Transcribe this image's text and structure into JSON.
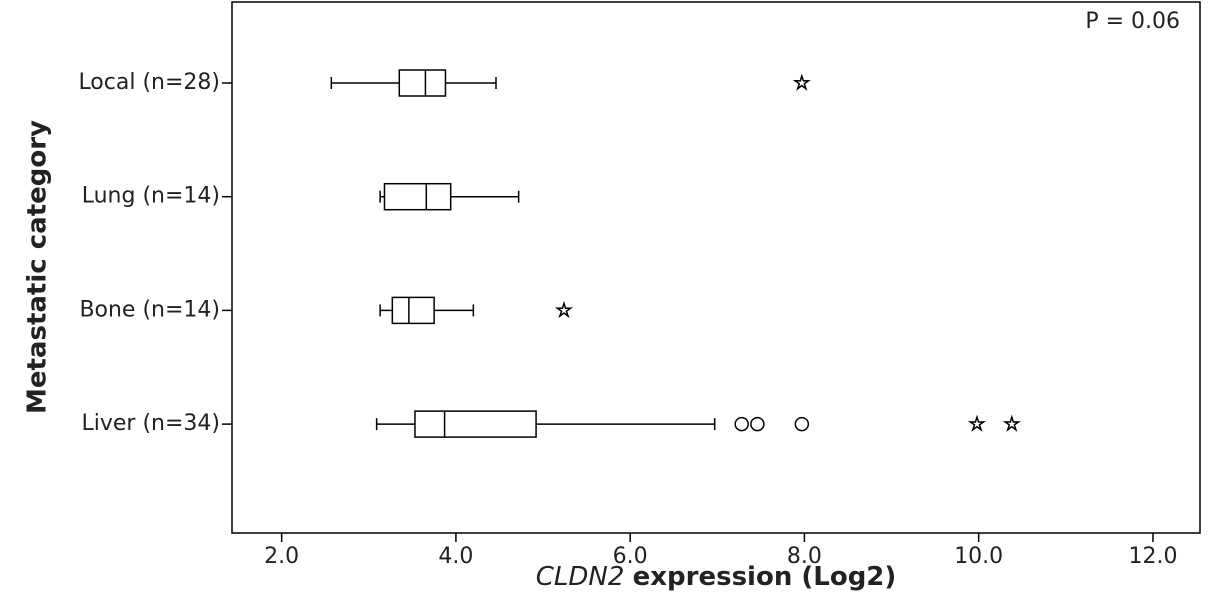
{
  "chart_data": {
    "type": "box",
    "orientation": "horizontal",
    "annotation": "P = 0.06",
    "ylabel": "Metastatic category",
    "xlabel": [
      "CLDN2",
      "expression (Log2)"
    ],
    "categories": [
      "Local (n=28)",
      "Lung (n=14)",
      "Bone (n=14)",
      "Liver (n=34)"
    ],
    "boxes": [
      {
        "min": 2.57,
        "q1": 3.35,
        "median": 3.65,
        "q3": 3.88,
        "max": 4.46,
        "outliers": [],
        "extremes": [
          7.97
        ]
      },
      {
        "min": 3.13,
        "q1": 3.18,
        "median": 3.66,
        "q3": 3.94,
        "max": 4.72,
        "outliers": [],
        "extremes": []
      },
      {
        "min": 3.13,
        "q1": 3.27,
        "median": 3.46,
        "q3": 3.75,
        "max": 4.2,
        "outliers": [],
        "extremes": [
          5.24
        ]
      },
      {
        "min": 3.09,
        "q1": 3.53,
        "median": 3.87,
        "q3": 4.92,
        "max": 6.97,
        "outliers": [
          7.28,
          7.46,
          7.97
        ],
        "extremes": [
          9.98,
          10.38
        ]
      }
    ],
    "color": "#000000",
    "xlim": [
      1.43,
      12.54
    ],
    "xticks": [
      {
        "value": 2,
        "label": "2.0"
      },
      {
        "value": 4,
        "label": "4.0"
      },
      {
        "value": 6,
        "label": "6.0"
      },
      {
        "value": 8,
        "label": "8.0"
      },
      {
        "value": 10,
        "label": "10.0"
      },
      {
        "value": 12,
        "label": "12.0"
      }
    ]
  }
}
